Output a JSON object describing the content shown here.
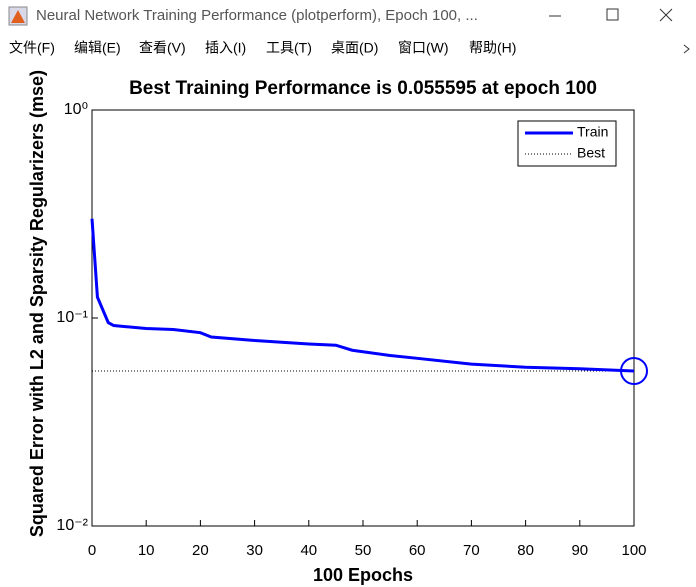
{
  "window": {
    "title": "Neural Network Training Performance (plotperform), Epoch 100, ...",
    "menu": [
      "文件(F)",
      "编辑(E)",
      "查看(V)",
      "插入(I)",
      "工具(T)",
      "桌面(D)",
      "窗口(W)",
      "帮助(H)"
    ]
  },
  "chart_data": {
    "type": "line",
    "title": "Best Training Performance is 0.055595 at epoch 100",
    "xlabel": "100 Epochs",
    "ylabel": "Squared Error with L2 and Sparsity Regularizers  (mse)",
    "log_y": true,
    "xlim": [
      0,
      100
    ],
    "ylim": [
      0.01,
      1
    ],
    "xticks": [
      0,
      10,
      20,
      30,
      40,
      50,
      60,
      70,
      80,
      90,
      100
    ],
    "yticks": [
      {
        "value": 1,
        "label": "10⁰"
      },
      {
        "value": 0.1,
        "label": "10⁻¹"
      },
      {
        "value": 0.01,
        "label": "10⁻²"
      }
    ],
    "legend": "upper right",
    "series": [
      {
        "name": "Train",
        "color": "#0000ff",
        "x": [
          0,
          1,
          3,
          4,
          10,
          15,
          20,
          22,
          30,
          40,
          45,
          48,
          55,
          60,
          70,
          80,
          90,
          100
        ],
        "values": [
          0.3,
          0.126,
          0.095,
          0.092,
          0.089,
          0.088,
          0.085,
          0.081,
          0.078,
          0.075,
          0.074,
          0.07,
          0.066,
          0.064,
          0.06,
          0.058,
          0.057,
          0.055595
        ]
      }
    ],
    "best": {
      "name": "Best",
      "epoch": 100,
      "value": 0.055595
    }
  }
}
